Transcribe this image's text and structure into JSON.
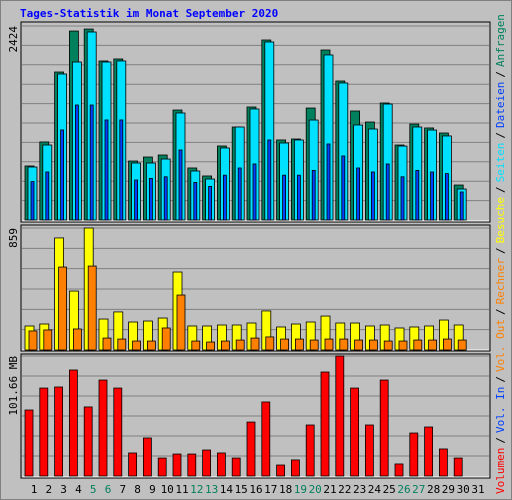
{
  "title": "Tages-Statistik im Monat September 2020",
  "separator": "/",
  "categories": [
    "1",
    "2",
    "3",
    "4",
    "5",
    "6",
    "7",
    "8",
    "9",
    "10",
    "11",
    "12",
    "13",
    "14",
    "15",
    "16",
    "17",
    "18",
    "19",
    "20",
    "21",
    "22",
    "23",
    "24",
    "25",
    "26",
    "27",
    "28",
    "29",
    "30",
    "31"
  ],
  "category_colors": [
    "#000000",
    "#000000",
    "#000000",
    "#000000",
    "#00805c",
    "#00805c",
    "#000000",
    "#000000",
    "#000000",
    "#000000",
    "#000000",
    "#00805c",
    "#00805c",
    "#000000",
    "#000000",
    "#000000",
    "#000000",
    "#000000",
    "#00805c",
    "#00805c",
    "#000000",
    "#000000",
    "#000000",
    "#000000",
    "#000000",
    "#00805c",
    "#00805c",
    "#000000",
    "#000000",
    "#000000",
    "#000000"
  ],
  "chart_data": [
    {
      "type": "bar",
      "ylim": [
        0,
        2424
      ],
      "yticks": [
        2424
      ],
      "series": [
        {
          "name": "Anfragen",
          "color": "#00805c",
          "values": [
            675,
            975,
            1849,
            2361,
            2386,
            1987,
            2012,
            737,
            787,
            812,
            1374,
            650,
            550,
            925,
            1162,
            1412,
            2249,
            1000,
            1012,
            1399,
            2124,
            1737,
            1362,
            1224,
            1462,
            937,
            1199,
            1150,
            1087,
            437,
            null
          ]
        },
        {
          "name": "Dateien",
          "color": "#0040ff",
          "values": [
            480,
            600,
            1125,
            1437,
            1437,
            1250,
            1250,
            500,
            520,
            540,
            875,
            470,
            420,
            560,
            650,
            700,
            1000,
            560,
            560,
            620,
            950,
            800,
            650,
            600,
            700,
            540,
            620,
            600,
            580,
            350,
            null
          ]
        },
        {
          "name": "Seiten",
          "color": "#00e0ff",
          "values": [
            662,
            937,
            1824,
            1974,
            2349,
            1974,
            1987,
            712,
            712,
            762,
            1337,
            612,
            512,
            900,
            1162,
            1387,
            2224,
            962,
            1000,
            1249,
            2062,
            1712,
            1187,
            1137,
            1449,
            924,
            1162,
            1124,
            1050,
            387,
            null
          ]
        }
      ]
    },
    {
      "type": "bar",
      "ylim": [
        0,
        859
      ],
      "yticks": [
        859
      ],
      "series": [
        {
          "name": "Besuche",
          "color": "#ffff00",
          "values": [
            169,
            183,
            789,
            415,
            859,
            218,
            268,
            197,
            204,
            225,
            549,
            169,
            169,
            176,
            176,
            190,
            275,
            162,
            183,
            197,
            239,
            190,
            190,
            169,
            176,
            155,
            162,
            169,
            211,
            176,
            null
          ]
        },
        {
          "name": "Rechner",
          "color": "#ff8000",
          "values": [
            134,
            141,
            584,
            148,
            591,
            84,
            77,
            63,
            63,
            155,
            387,
            63,
            56,
            63,
            70,
            84,
            92,
            77,
            77,
            70,
            77,
            77,
            70,
            70,
            63,
            63,
            70,
            70,
            77,
            70,
            null
          ]
        }
      ]
    },
    {
      "type": "bar",
      "ylim": [
        0,
        101.66
      ],
      "yticks": [
        {
          "value": 101.66,
          "label": "101.66 MB"
        }
      ],
      "series": [
        {
          "name": "Vol. Out",
          "color": "#ff8000",
          "values": [
            null,
            null,
            null,
            null,
            null,
            null,
            null,
            null,
            null,
            null,
            null,
            null,
            null,
            null,
            null,
            null,
            null,
            null,
            null,
            null,
            null,
            null,
            null,
            null,
            null,
            null,
            null,
            null,
            null,
            null,
            null
          ]
        },
        {
          "name": "Vol. In",
          "color": "#0040ff",
          "values": [
            null,
            null,
            null,
            null,
            null,
            null,
            null,
            null,
            null,
            null,
            null,
            null,
            null,
            null,
            null,
            null,
            null,
            null,
            null,
            null,
            null,
            null,
            null,
            null,
            null,
            null,
            null,
            null,
            null,
            null,
            null
          ]
        },
        {
          "name": "Volumen",
          "color": "#ff0000",
          "values": [
            55.9,
            74.5,
            75.4,
            89.8,
            58.5,
            81.3,
            74.5,
            19.5,
            32.2,
            15.2,
            18.6,
            18.6,
            22,
            19.5,
            15.2,
            45.7,
            62.7,
            9.3,
            13.6,
            43.2,
            88.1,
            101.66,
            74.5,
            43.2,
            81.3,
            10.2,
            36.4,
            41.5,
            22.9,
            15.2,
            null
          ]
        }
      ]
    }
  ]
}
